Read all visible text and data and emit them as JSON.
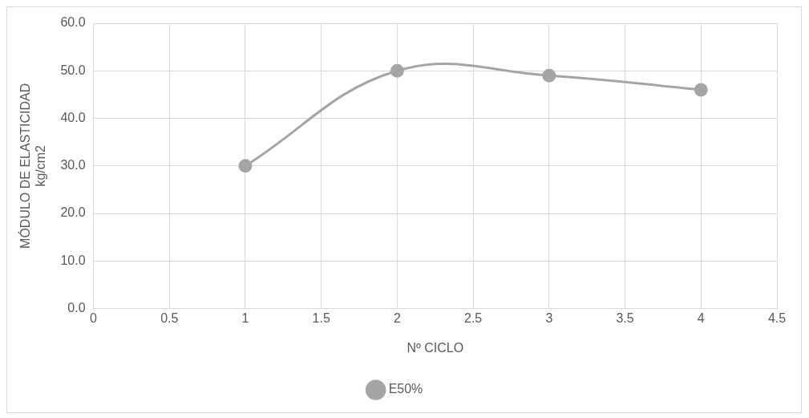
{
  "chart_data": {
    "type": "line",
    "xlabel": "Nº CICLO",
    "ylabel": "MÓDULO DE ELASTICIDAD\nkg/cm2",
    "x": [
      1,
      2,
      3,
      4
    ],
    "series": [
      {
        "name": "E50%",
        "color": "#a5a5a5",
        "values": [
          30,
          50,
          49,
          46
        ]
      }
    ],
    "xlim": [
      0,
      4.5
    ],
    "xticks": [
      0,
      0.5,
      1,
      1.5,
      2,
      2.5,
      3,
      3.5,
      4,
      4.5
    ],
    "ylim": [
      0,
      60
    ],
    "yticks": [
      {
        "value": 0,
        "label": "0.0"
      },
      {
        "value": 10,
        "label": "10.0"
      },
      {
        "value": 20,
        "label": "20.0"
      },
      {
        "value": 30,
        "label": "30.0"
      },
      {
        "value": 40,
        "label": "40.0"
      },
      {
        "value": 50,
        "label": "50.0"
      },
      {
        "value": 60,
        "label": "60.0"
      }
    ],
    "grid": true,
    "legend": "bottom",
    "marker": "circle",
    "line_style": "solid"
  }
}
